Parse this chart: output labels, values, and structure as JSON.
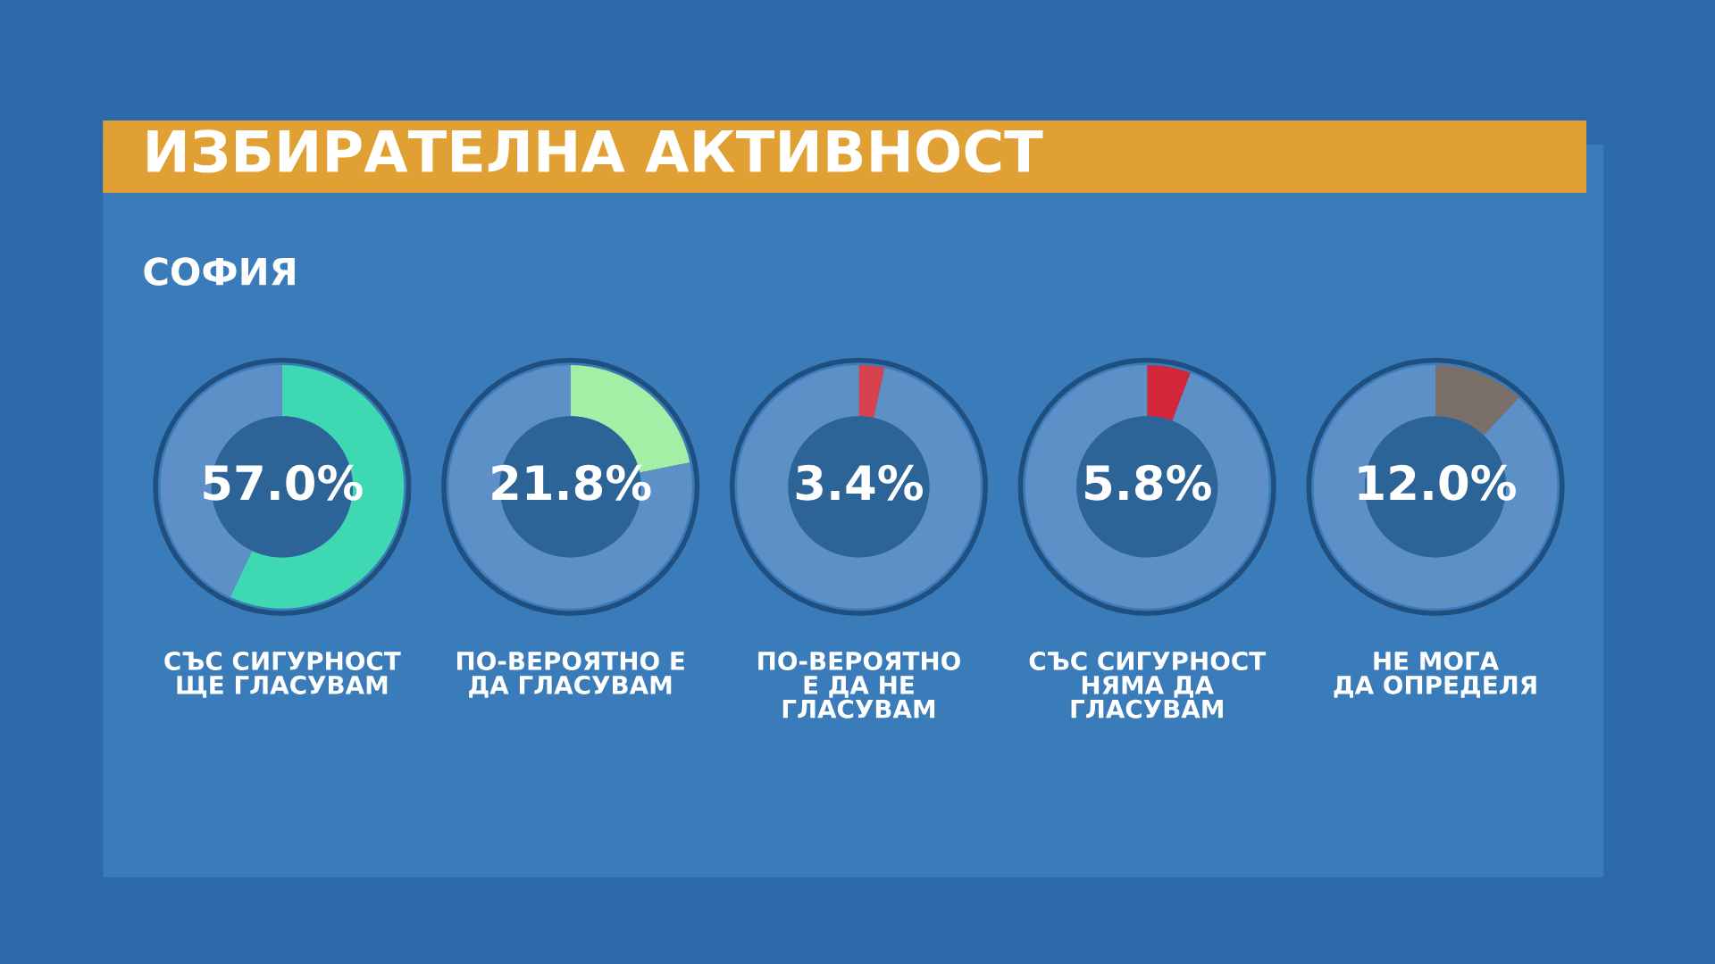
{
  "chart_data": [
    {
      "type": "donut",
      "title": "ИЗБИРАТЕЛНА АКТИВНОСТ",
      "subtitle": "СОФИЯ",
      "xlabel": "СЪС СИГУРНОСТ\nЩЕ ГЛАСУВАМ",
      "categories": [
        null,
        null
      ],
      "values": [
        57.0,
        43.0
      ],
      "colors": [
        "#3ed8b2",
        "#5d90c6"
      ],
      "value_labels": [
        "57.0%",
        null
      ]
    },
    {
      "type": "donut",
      "xlabel": "ПО-ВЕРОЯТНО Е\nДА ГЛАСУВАМ",
      "categories": [
        null,
        null
      ],
      "values": [
        21.8,
        78.2
      ],
      "colors": [
        "#a3efa6",
        "#5d90c6"
      ],
      "value_labels": [
        "21.8%",
        null
      ]
    },
    {
      "type": "donut",
      "xlabel": "ПО-ВЕРОЯТНО\nЕ ДА НЕ\nГЛАСУВАМ",
      "categories": [
        null,
        null
      ],
      "values": [
        3.4,
        96.6
      ],
      "colors": [
        "#d6434f",
        "#5d90c6"
      ],
      "value_labels": [
        "3.4%",
        null
      ]
    },
    {
      "type": "donut",
      "xlabel": "СЪС СИГУРНОСТ\nНЯМА ДА\nГЛАСУВАМ",
      "categories": [
        null,
        null
      ],
      "values": [
        5.8,
        94.2
      ],
      "colors": [
        "#d2263a",
        "#5d90c6"
      ],
      "value_labels": [
        "5.8%",
        null
      ]
    },
    {
      "type": "donut",
      "xlabel": "НЕ МОГА\nДА ОПРЕДЕЛЯ",
      "categories": [
        null,
        null
      ],
      "values": [
        12.0,
        88.0
      ],
      "colors": [
        "#7b7069",
        "#5d90c6"
      ],
      "value_labels": [
        "12.0%",
        null
      ]
    }
  ]
}
